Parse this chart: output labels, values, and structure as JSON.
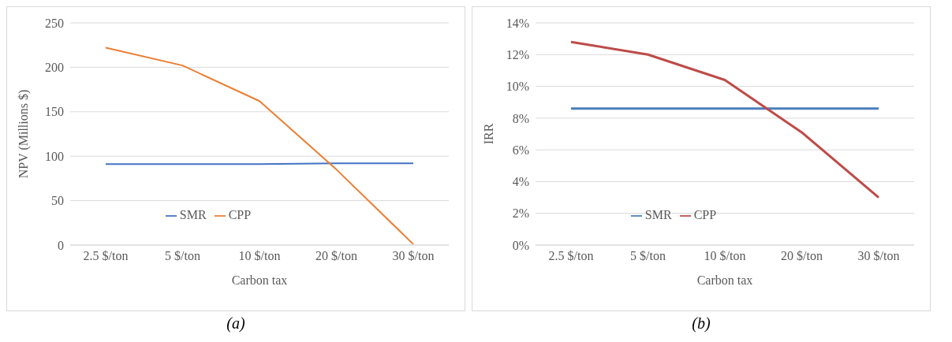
{
  "chart_data": [
    {
      "type": "line",
      "categories": [
        "2.5 $/ton",
        "5 $/ton",
        "10 $/ton",
        "20 $/ton",
        "30 $/ton"
      ],
      "series": [
        {
          "name": "SMR",
          "color": "#4472c4",
          "values": [
            91,
            91,
            91,
            92,
            92
          ]
        },
        {
          "name": "CPP",
          "color": "#ed7d31",
          "values": [
            222,
            202,
            162,
            85,
            1
          ]
        }
      ],
      "xlabel": "Carbon tax",
      "ylabel": "NPV (Millions $)",
      "ylim": [
        0,
        250
      ],
      "yticks": [
        0,
        50,
        100,
        150,
        200,
        250
      ],
      "grid": "y",
      "legend": "bottom left",
      "marker": "none",
      "line_style": "solid",
      "annotations": [
        "(a)"
      ]
    },
    {
      "type": "line",
      "categories": [
        "2.5 $/ton",
        "5 $/ton",
        "10 $/ton",
        "20 $/ton",
        "30 $/ton"
      ],
      "series": [
        {
          "name": "SMR",
          "color": "#4a7ebb",
          "values": [
            8.6,
            8.6,
            8.6,
            8.6,
            8.6
          ]
        },
        {
          "name": "CPP",
          "color": "#be4b48",
          "values": [
            12.8,
            12.0,
            10.4,
            7.1,
            3.0
          ]
        }
      ],
      "xlabel": "Carbon tax",
      "ylabel": "IRR",
      "ylim": [
        0,
        14
      ],
      "yticks": [
        {
          "value": 0,
          "label": "0%"
        },
        {
          "value": 2,
          "label": "2%"
        },
        {
          "value": 4,
          "label": "4%"
        },
        {
          "value": 6,
          "label": "6%"
        },
        {
          "value": 8,
          "label": "8%"
        },
        {
          "value": 10,
          "label": "10%"
        },
        {
          "value": 12,
          "label": "12%"
        },
        {
          "value": 14,
          "label": "14%"
        }
      ],
      "grid": "y",
      "legend": "bottom left",
      "marker": "none",
      "line_style": "solid",
      "annotations": [
        "(b)"
      ]
    }
  ]
}
